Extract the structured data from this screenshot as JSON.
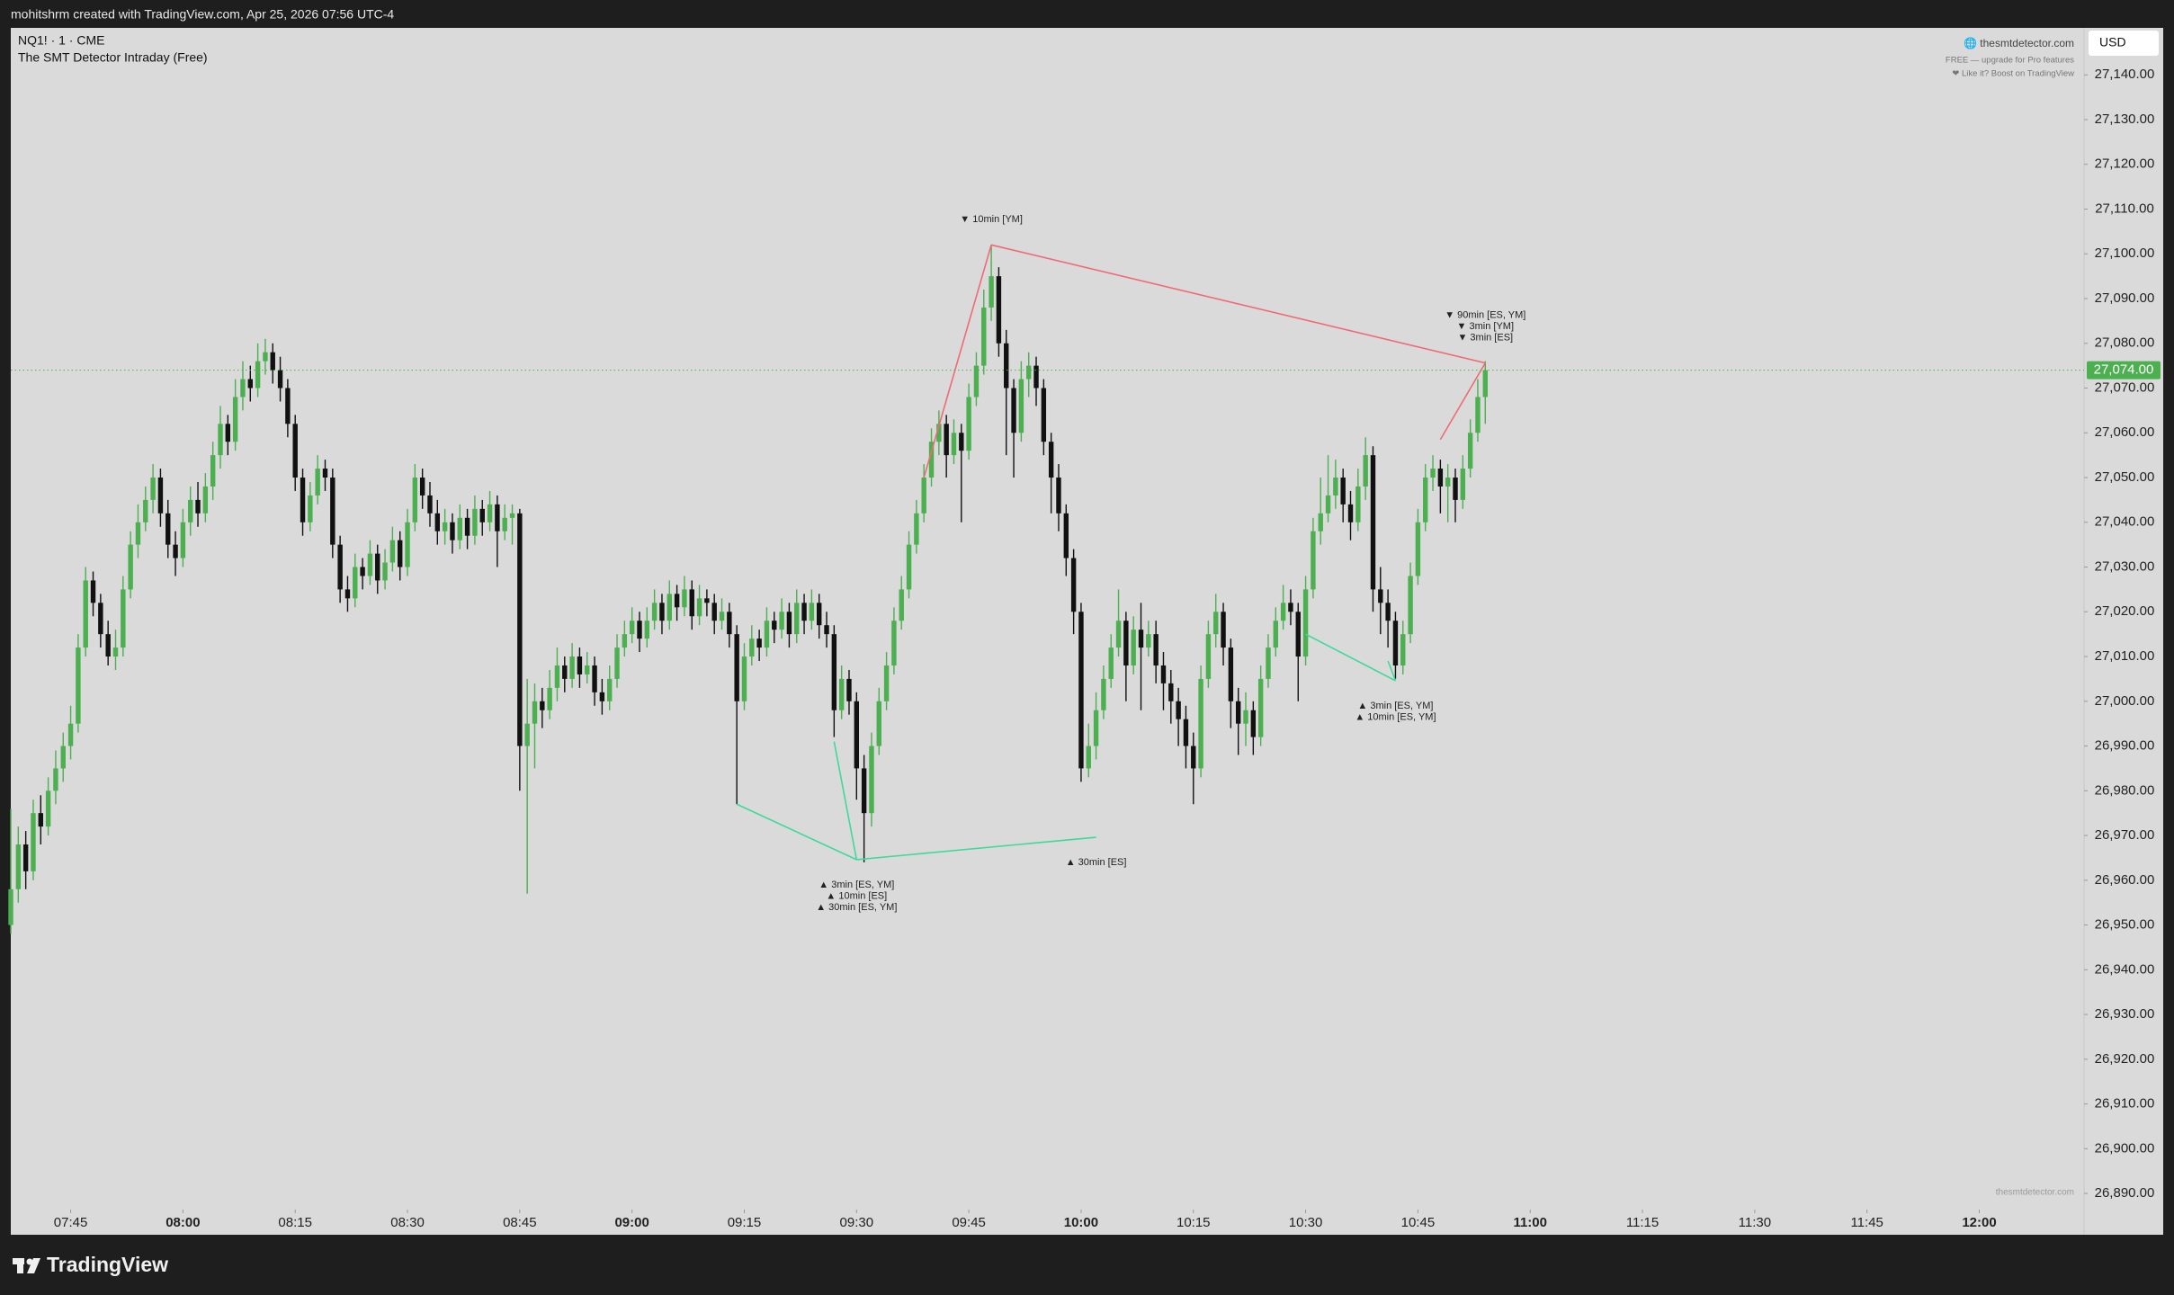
{
  "header": {
    "attribution": "mohitshrm created with TradingView.com, Apr 25, 2026 07:56 UTC-4"
  },
  "footer": {
    "brand": "TradingView"
  },
  "overlay": {
    "site": "🌐 thesmtdetector.com",
    "plan": "FREE — upgrade for Pro features",
    "boost": "❤ Like it? Boost on TradingView",
    "watermark": "thesmtdetector.com"
  },
  "chart_data": {
    "type": "candlestick",
    "symbol": "NQ1! · 1 · CME",
    "indicator": "The SMT Detector Intraday (Free)",
    "currency": "USD",
    "up_color": "#4caf50",
    "down_color": "#111111",
    "x": [
      "07:37",
      "07:38",
      "07:39",
      "07:40",
      "07:41",
      "07:42",
      "07:43",
      "07:44",
      "07:45",
      "07:46",
      "07:47",
      "07:48",
      "07:49",
      "07:50",
      "07:51",
      "07:52",
      "07:53",
      "07:54",
      "07:55",
      "07:56",
      "07:57",
      "07:58",
      "07:59",
      "08:00",
      "08:01",
      "08:02",
      "08:03",
      "08:04",
      "08:05",
      "08:06",
      "08:07",
      "08:08",
      "08:09",
      "08:10",
      "08:11",
      "08:12",
      "08:13",
      "08:14",
      "08:15",
      "08:16",
      "08:17",
      "08:18",
      "08:19",
      "08:20",
      "08:21",
      "08:22",
      "08:23",
      "08:24",
      "08:25",
      "08:26",
      "08:27",
      "08:28",
      "08:29",
      "08:30",
      "08:31",
      "08:32",
      "08:33",
      "08:34",
      "08:35",
      "08:36",
      "08:37",
      "08:38",
      "08:39",
      "08:40",
      "08:41",
      "08:42",
      "08:43",
      "08:44",
      "08:45",
      "08:46",
      "08:47",
      "08:48",
      "08:49",
      "08:50",
      "08:51",
      "08:52",
      "08:53",
      "08:54",
      "08:55",
      "08:56",
      "08:57",
      "08:58",
      "08:59",
      "09:00",
      "09:01",
      "09:02",
      "09:03",
      "09:04",
      "09:05",
      "09:06",
      "09:07",
      "09:08",
      "09:09",
      "09:10",
      "09:11",
      "09:12",
      "09:13",
      "09:14",
      "09:15",
      "09:16",
      "09:17",
      "09:18",
      "09:19",
      "09:20",
      "09:21",
      "09:22",
      "09:23",
      "09:24",
      "09:25",
      "09:26",
      "09:27",
      "09:28",
      "09:29",
      "09:30",
      "09:31",
      "09:32",
      "09:33",
      "09:34",
      "09:35",
      "09:36",
      "09:37",
      "09:38",
      "09:39",
      "09:40",
      "09:41",
      "09:42",
      "09:43",
      "09:44",
      "09:45",
      "09:46",
      "09:47",
      "09:48",
      "09:49",
      "09:50",
      "09:51",
      "09:52",
      "09:53",
      "09:54",
      "09:55",
      "09:56",
      "09:57",
      "09:58",
      "09:59",
      "10:00",
      "10:01",
      "10:02",
      "10:03",
      "10:04",
      "10:05",
      "10:06",
      "10:07",
      "10:08",
      "10:09",
      "10:10",
      "10:11",
      "10:12",
      "10:13",
      "10:14",
      "10:15",
      "10:16",
      "10:17",
      "10:18",
      "10:19",
      "10:20",
      "10:21",
      "10:22",
      "10:23",
      "10:24",
      "10:25",
      "10:26",
      "10:27",
      "10:28",
      "10:29",
      "10:30",
      "10:31",
      "10:32",
      "10:33",
      "10:34",
      "10:35",
      "10:36",
      "10:37",
      "10:38",
      "10:39",
      "10:40",
      "10:41",
      "10:42",
      "10:43",
      "10:44",
      "10:45",
      "10:46",
      "10:47",
      "10:48",
      "10:49",
      "10:50",
      "10:51",
      "10:52",
      "10:53",
      "10:54"
    ],
    "open": [
      26950,
      26958,
      26968,
      26962,
      26975,
      26972,
      26980,
      26985,
      26990,
      26995,
      27012,
      27027,
      27022,
      27015,
      27010,
      27012,
      27025,
      27035,
      27040,
      27045,
      27050,
      27042,
      27035,
      27032,
      27040,
      27045,
      27042,
      27048,
      27055,
      27062,
      27058,
      27068,
      27072,
      27070,
      27076,
      27078,
      27074,
      27070,
      27062,
      27050,
      27040,
      27046,
      27052,
      27050,
      27035,
      27025,
      27023,
      27030,
      27028,
      27033,
      27027,
      27031,
      27036,
      27030,
      27040,
      27050,
      27046,
      27042,
      27038,
      27040,
      27036,
      27041,
      27037,
      27043,
      27040,
      27044,
      27038,
      27041,
      27042,
      26990,
      26995,
      27000,
      26998,
      27003,
      27008,
      27005,
      27010,
      27006,
      27008,
      27002,
      27000,
      27005,
      27012,
      27015,
      27018,
      27014,
      27018,
      27022,
      27018,
      27024,
      27021,
      27025,
      27019,
      27023,
      27022,
      27018,
      27020,
      27015,
      27000,
      27010,
      27014,
      27012,
      27018,
      27016,
      27020,
      27015,
      27022,
      27018,
      27022,
      27017,
      27015,
      26998,
      27005,
      27000,
      26985,
      26975,
      26990,
      27000,
      27008,
      27018,
      27025,
      27035,
      27042,
      27050,
      27058,
      27062,
      27055,
      27060,
      27056,
      27068,
      27075,
      27088,
      27095,
      27080,
      27070,
      27060,
      27072,
      27075,
      27070,
      27058,
      27050,
      27042,
      27032,
      27020,
      26985,
      26990,
      26998,
      27005,
      27012,
      27018,
      27008,
      27016,
      27012,
      27015,
      27008,
      27004,
      27000,
      26996,
      26990,
      26985,
      27005,
      27015,
      27020,
      27012,
      27000,
      26995,
      26998,
      26992,
      27005,
      27012,
      27018,
      27022,
      27020,
      27010,
      27025,
      27038,
      27042,
      27046,
      27050,
      27044,
      27040,
      27048,
      27055,
      27025,
      27022,
      27018,
      27008,
      27015,
      27028,
      27040,
      27050,
      27052,
      27048,
      27050,
      27045,
      27052,
      27060,
      27068
    ],
    "high": [
      26976,
      26972,
      26971,
      26978,
      26979,
      26983,
      26989,
      26993,
      26999,
      27015,
      27030,
      27029,
      27024,
      27018,
      27016,
      27028,
      27038,
      27044,
      27048,
      27053,
      27052,
      27045,
      27038,
      27043,
      27048,
      27049,
      27051,
      27058,
      27066,
      27064,
      27072,
      27076,
      27075,
      27080,
      27081,
      27080,
      27077,
      27072,
      27064,
      27052,
      27049,
      27055,
      27054,
      27052,
      27037,
      27028,
      27033,
      27032,
      27036,
      27035,
      27034,
      27039,
      27038,
      27043,
      27053,
      27052,
      27049,
      27045,
      27043,
      27042,
      27044,
      27043,
      27046,
      27045,
      27047,
      27046,
      27044,
      27044,
      27043,
      27005,
      27004,
      27003,
      27007,
      27012,
      27010,
      27013,
      27012,
      27011,
      27010,
      27005,
      27008,
      27015,
      27018,
      27021,
      27020,
      27021,
      27025,
      27024,
      27027,
      27026,
      27028,
      27027,
      27026,
      27025,
      27024,
      27023,
      27022,
      27017,
      27013,
      27017,
      27016,
      27021,
      27020,
      27023,
      27022,
      27025,
      27024,
      27025,
      27024,
      27020,
      27017,
      27008,
      27007,
      27002,
      26988,
      26993,
      27003,
      27011,
      27021,
      27028,
      27038,
      27045,
      27053,
      27061,
      27065,
      27064,
      27063,
      27062,
      27071,
      27078,
      27092,
      27102,
      27097,
      27083,
      27072,
      27076,
      27078,
      27077,
      27072,
      27060,
      27053,
      27044,
      27034,
      27022,
      26995,
      27002,
      27008,
      27015,
      27025,
      27020,
      27019,
      27022,
      27018,
      27018,
      27011,
      27007,
      27003,
      26999,
      26993,
      27008,
      27018,
      27024,
      27022,
      27014,
      27003,
      27002,
      27000,
      27008,
      27015,
      27021,
      27026,
      27025,
      27022,
      27028,
      27041,
      27050,
      27055,
      27054,
      27052,
      27047,
      27052,
      27059,
      27057,
      27030,
      27025,
      27020,
      27018,
      27031,
      27043,
      27053,
      27055,
      27054,
      27053,
      27052,
      27055,
      27063,
      27072,
      27076
    ],
    "low": [
      26948,
      26955,
      26958,
      26960,
      26968,
      26970,
      26977,
      26982,
      26987,
      26993,
      27010,
      27019,
      27012,
      27008,
      27007,
      27010,
      27023,
      27032,
      27038,
      27042,
      27039,
      27032,
      27028,
      27030,
      27037,
      27039,
      27040,
      27045,
      27052,
      27055,
      27056,
      27065,
      27067,
      27068,
      27073,
      27071,
      27067,
      27059,
      27047,
      27037,
      27038,
      27044,
      27047,
      27032,
      27022,
      27020,
      27021,
      27025,
      27026,
      27024,
      27025,
      27029,
      27027,
      27028,
      27038,
      27043,
      27039,
      27035,
      27035,
      27033,
      27034,
      27034,
      27035,
      27037,
      27038,
      27030,
      27036,
      27035,
      26980,
      26957,
      26985,
      26994,
      26996,
      27000,
      27002,
      27003,
      27003,
      27004,
      26999,
      26997,
      26998,
      27003,
      27010,
      27013,
      27011,
      27012,
      27016,
      27015,
      27016,
      27018,
      27019,
      27016,
      27017,
      27019,
      27015,
      27016,
      27012,
      26977,
      26998,
      27008,
      27009,
      27010,
      27013,
      27014,
      27012,
      27013,
      27015,
      27016,
      27014,
      27012,
      26992,
      26996,
      26997,
      26978,
      26964,
      26972,
      26988,
      26998,
      27006,
      27016,
      27023,
      27033,
      27040,
      27048,
      27055,
      27050,
      27053,
      27040,
      27054,
      27066,
      27073,
      27085,
      27077,
      27055,
      27050,
      27058,
      27068,
      27066,
      27055,
      27042,
      27038,
      27028,
      27015,
      26982,
      26983,
      26987,
      26996,
      27003,
      27010,
      27000,
      27006,
      26998,
      27010,
      27004,
      26998,
      26995,
      26990,
      26985,
      26977,
      26983,
      27003,
      27012,
      27008,
      26994,
      26988,
      26990,
      26988,
      26990,
      27003,
      27010,
      27016,
      27017,
      27000,
      27008,
      27023,
      27035,
      27040,
      27043,
      27040,
      27036,
      27038,
      27045,
      27020,
      27015,
      27012,
      27005,
      27006,
      27013,
      27026,
      27038,
      27047,
      27042,
      27040,
      27040,
      27043,
      27050,
      27058,
      27062
    ],
    "close": [
      26958,
      26968,
      26962,
      26975,
      26972,
      26980,
      26985,
      26990,
      26995,
      27012,
      27027,
      27022,
      27015,
      27010,
      27012,
      27025,
      27035,
      27040,
      27045,
      27050,
      27042,
      27035,
      27032,
      27040,
      27045,
      27042,
      27048,
      27055,
      27062,
      27058,
      27068,
      27072,
      27070,
      27076,
      27078,
      27074,
      27070,
      27062,
      27050,
      27040,
      27046,
      27052,
      27050,
      27035,
      27025,
      27023,
      27030,
      27028,
      27033,
      27027,
      27031,
      27036,
      27030,
      27040,
      27050,
      27046,
      27042,
      27038,
      27040,
      27036,
      27041,
      27037,
      27043,
      27040,
      27044,
      27038,
      27041,
      27042,
      26990,
      26995,
      27000,
      26998,
      27003,
      27008,
      27005,
      27010,
      27006,
      27008,
      27002,
      27000,
      27005,
      27012,
      27015,
      27018,
      27014,
      27018,
      27022,
      27018,
      27024,
      27021,
      27025,
      27019,
      27023,
      27022,
      27018,
      27020,
      27015,
      27000,
      27010,
      27014,
      27012,
      27018,
      27016,
      27020,
      27015,
      27022,
      27018,
      27022,
      27017,
      27015,
      26998,
      27005,
      27000,
      26985,
      26975,
      26990,
      27000,
      27008,
      27018,
      27025,
      27035,
      27042,
      27050,
      27058,
      27062,
      27055,
      27060,
      27056,
      27068,
      27075,
      27088,
      27095,
      27080,
      27070,
      27060,
      27072,
      27075,
      27070,
      27058,
      27050,
      27042,
      27032,
      27020,
      26985,
      26990,
      26998,
      27005,
      27012,
      27018,
      27008,
      27016,
      27012,
      27015,
      27008,
      27004,
      27000,
      26996,
      26990,
      26985,
      27005,
      27015,
      27020,
      27012,
      27000,
      26995,
      26998,
      26992,
      27005,
      27012,
      27018,
      27022,
      27020,
      27010,
      27025,
      27038,
      27042,
      27046,
      27050,
      27044,
      27040,
      27048,
      27055,
      27025,
      27022,
      27018,
      27008,
      27015,
      27028,
      27040,
      27050,
      27052,
      27048,
      27050,
      27045,
      27052,
      27060,
      27068,
      27074
    ],
    "xlim": [
      "07:37",
      "12:14"
    ],
    "xticks": [
      "07:45",
      "08:00",
      "08:15",
      "08:30",
      "08:45",
      "09:00",
      "09:15",
      "09:30",
      "09:45",
      "10:00",
      "10:15",
      "10:30",
      "10:45",
      "11:00",
      "11:15",
      "11:30",
      "11:45",
      "12:00"
    ],
    "ylim": [
      26887.2,
      27150.5
    ],
    "yticks": [
      {
        "value": 26890,
        "label": "26,890.00"
      },
      {
        "value": 26900,
        "label": "26,900.00"
      },
      {
        "value": 26910,
        "label": "26,910.00"
      },
      {
        "value": 26920,
        "label": "26,920.00"
      },
      {
        "value": 26930,
        "label": "26,930.00"
      },
      {
        "value": 26940,
        "label": "26,940.00"
      },
      {
        "value": 26950,
        "label": "26,950.00"
      },
      {
        "value": 26960,
        "label": "26,960.00"
      },
      {
        "value": 26970,
        "label": "26,970.00"
      },
      {
        "value": 26980,
        "label": "26,980.00"
      },
      {
        "value": 26990,
        "label": "26,990.00"
      },
      {
        "value": 27000,
        "label": "27,000.00"
      },
      {
        "value": 27010,
        "label": "27,010.00"
      },
      {
        "value": 27020,
        "label": "27,020.00"
      },
      {
        "value": 27030,
        "label": "27,030.00"
      },
      {
        "value": 27040,
        "label": "27,040.00"
      },
      {
        "value": 27050,
        "label": "27,050.00"
      },
      {
        "value": 27060,
        "label": "27,060.00"
      },
      {
        "value": 27070,
        "label": "27,070.00"
      },
      {
        "value": 27080,
        "label": "27,080.00"
      },
      {
        "value": 27090,
        "label": "27,090.00"
      },
      {
        "value": 27100,
        "label": "27,100.00"
      },
      {
        "value": 27110,
        "label": "27,110.00"
      },
      {
        "value": 27120,
        "label": "27,120.00"
      },
      {
        "value": 27130,
        "label": "27,130.00"
      },
      {
        "value": 27140,
        "label": "27,140.00"
      }
    ],
    "last_price": {
      "value": 27074,
      "label": "27,074.00",
      "color": "#4caf50"
    },
    "smt_lines": [
      {
        "color": "#ef6a74",
        "points": [
          [
            "09:48",
            27102
          ],
          [
            "10:54",
            27075.6
          ]
        ]
      },
      {
        "color": "#ef6a74",
        "points": [
          [
            "09:39",
            27050
          ],
          [
            "09:48",
            27102
          ]
        ]
      },
      {
        "color": "#ef6a74",
        "points": [
          [
            "10:48",
            27058.5
          ],
          [
            "10:54",
            27075.6
          ]
        ]
      },
      {
        "color": "#3fd99a",
        "points": [
          [
            "09:14",
            26977
          ],
          [
            "09:30",
            26964.6
          ]
        ]
      },
      {
        "color": "#3fd99a",
        "points": [
          [
            "09:27",
            26991
          ],
          [
            "09:30",
            26964.6
          ]
        ]
      },
      {
        "color": "#3fd99a",
        "points": [
          [
            "09:30",
            26964.6
          ],
          [
            "10:02",
            26969.6
          ]
        ]
      },
      {
        "color": "#3fd99a",
        "points": [
          [
            "10:30",
            27015
          ],
          [
            "10:42",
            27004.6
          ]
        ]
      },
      {
        "color": "#3fd99a",
        "points": [
          [
            "10:41",
            27009
          ],
          [
            "10:42",
            27004.6
          ]
        ]
      }
    ],
    "annotations": [
      {
        "at": [
          "09:48",
          27102
        ],
        "side": "above",
        "lines": [
          "▼ 10min [YM]"
        ]
      },
      {
        "at": [
          "10:54",
          27075.6
        ],
        "side": "above",
        "lines": [
          "▼ 90min [ES, YM]",
          "▼ 3min [YM]",
          "▼ 3min [ES]"
        ]
      },
      {
        "at": [
          "09:30",
          26964.6
        ],
        "side": "below",
        "lines": [
          "▲ 3min [ES, YM]",
          "▲ 10min [ES]",
          "▲ 30min [ES, YM]"
        ]
      },
      {
        "at": [
          "10:02",
          26969.6
        ],
        "side": "below",
        "lines": [
          "▲ 30min [ES]"
        ]
      },
      {
        "at": [
          "10:42",
          27004.6
        ],
        "side": "below",
        "lines": [
          "▲ 3min [ES, YM]",
          "▲ 10min [ES, YM]"
        ]
      }
    ]
  }
}
